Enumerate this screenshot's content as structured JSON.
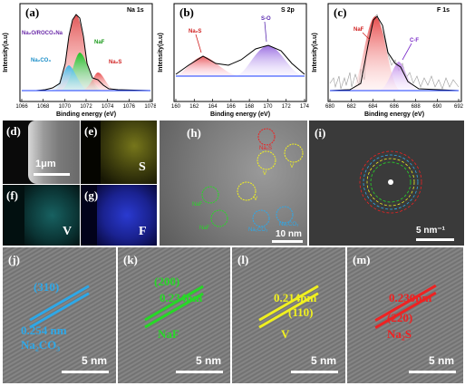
{
  "top_row": [
    {
      "panel": "(a)",
      "element": "Na 1s",
      "xlabel": "Binding energy (eV)",
      "ylabel": "Intensity(a.u)",
      "xticks": [
        "1066",
        "1068",
        "1070",
        "1072",
        "1074",
        "1076",
        "1078"
      ],
      "annotations": {
        "a1": "Na₂O/ROCO₂Na",
        "a2": "NaF",
        "a3": "Na₂CO₃",
        "a4": "Na₂S"
      }
    },
    {
      "panel": "(b)",
      "element": "S 2p",
      "xlabel": "Binding energy (eV)",
      "ylabel": "Intensity(a.u)",
      "xticks": [
        "160",
        "162",
        "164",
        "166",
        "168",
        "170",
        "172",
        "174"
      ],
      "annotations": {
        "a1": "Na₂S",
        "a2": "S-O"
      }
    },
    {
      "panel": "(c)",
      "element": "F 1s",
      "xlabel": "Binding energy (eV)",
      "ylabel": "Intensity(a.u)",
      "xticks": [
        "680",
        "682",
        "684",
        "686",
        "688",
        "690",
        "692"
      ],
      "annotations": {
        "a1": "NaF",
        "a2": "C-F"
      }
    }
  ],
  "maps": {
    "d": {
      "label": "(d)",
      "scale": "1μm"
    },
    "e": {
      "label": "(e)",
      "element": "S"
    },
    "f": {
      "label": "(f)",
      "element": "V"
    },
    "g": {
      "label": "(g)",
      "element": "F"
    }
  },
  "h": {
    "label": "(h)",
    "scale": "10 nm",
    "tags": [
      "Na₂S",
      "V",
      "V",
      "NaF",
      "NaF",
      "V",
      "Na₂CO₃",
      "Na₂CO₃"
    ]
  },
  "i": {
    "label": "(i)",
    "scale": "5 nm⁻¹"
  },
  "bottom_row": [
    {
      "label": "(j)",
      "plane": "(310)",
      "spacing": "0.254 nm",
      "phase": "Na₂CO₃",
      "scale": "5 nm",
      "color": "#2ea8e8"
    },
    {
      "label": "(k)",
      "plane": "(200)",
      "spacing": "0.234nm",
      "phase": "NaF",
      "scale": "5 nm",
      "color": "#28d828"
    },
    {
      "label": "(l)",
      "plane": "(110)",
      "spacing": "0.214nm",
      "phase": "V",
      "scale": "5 nm",
      "color": "#f0f020"
    },
    {
      "label": "(m)",
      "plane": "(220)",
      "spacing": "0.230nm",
      "phase": "Na₂S",
      "scale": "5 nm",
      "color": "#ee2222"
    }
  ],
  "chart_data": [
    {
      "type": "line",
      "title": "Na 1s",
      "xlabel": "Binding energy (eV)",
      "ylabel": "Intensity(a.u)",
      "xlim": [
        1066,
        1078
      ],
      "components": [
        {
          "name": "Na₂O/ROCO₂Na",
          "center": 1071.3,
          "color": "#cc3333"
        },
        {
          "name": "NaF",
          "center": 1071.6,
          "color": "#2ecc40"
        },
        {
          "name": "Na₂CO₃",
          "center": 1070.7,
          "color": "#3fb7e6"
        },
        {
          "name": "Na₂S",
          "center": 1072.7,
          "color": "#e0503c"
        }
      ]
    },
    {
      "type": "line",
      "title": "S 2p",
      "xlabel": "Binding energy (eV)",
      "ylabel": "Intensity(a.u)",
      "xlim": [
        160,
        174
      ],
      "components": [
        {
          "name": "Na₂S",
          "center": 162.8,
          "color": "#e85a5a"
        },
        {
          "name": "S-O",
          "center": 168.8,
          "color": "#9a6ee0"
        }
      ]
    },
    {
      "type": "line",
      "title": "F 1s",
      "xlabel": "Binding energy (eV)",
      "ylabel": "Intensity(a.u)",
      "xlim": [
        680,
        692
      ],
      "components": [
        {
          "name": "NaF",
          "center": 684.4,
          "color": "#e64a4a"
        },
        {
          "name": "C-F",
          "center": 686.8,
          "color": "#b06ee0"
        }
      ]
    }
  ]
}
